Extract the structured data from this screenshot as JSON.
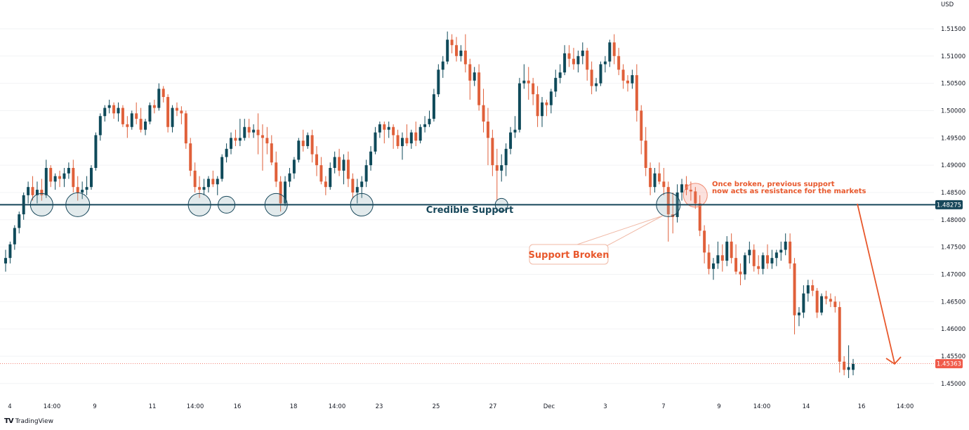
{
  "app": {
    "brand_logo": "TV",
    "brand_name": "TradingView"
  },
  "colors": {
    "up": "#0f4a5a",
    "down": "#e0603a",
    "support_line": "#17475a",
    "annotation": "#e8582c",
    "last_price": "#f05a4a"
  },
  "axis": {
    "currency": "USD"
  },
  "annotations": {
    "support_label": "Credible Support",
    "broken_label": "Support Broken",
    "resistance_note_line1": "Once broken, previous support",
    "resistance_note_line2": "now acts as resistance for the markets"
  },
  "chart_data": {
    "type": "candlestick",
    "title": "",
    "ylabel": "USD",
    "ylim": [
      1.4474,
      1.5195
    ],
    "yticks": [
      1.515,
      1.51,
      1.505,
      1.5,
      1.495,
      1.49,
      1.485,
      1.48,
      1.475,
      1.47,
      1.465,
      1.46,
      1.455,
      1.45
    ],
    "ytick_labels": [
      "1.51500",
      "1.51000",
      "1.50500",
      "1.50000",
      "1.49500",
      "1.49000",
      "1.48500",
      "1.48000",
      "1.47500",
      "1.47000",
      "1.46500",
      "1.46000",
      "1.45500",
      "1.45000"
    ],
    "xtick_labels": [
      "4",
      "14:00",
      "9",
      "11",
      "14:00",
      "16",
      "18",
      "14:00",
      "23",
      "25",
      "27",
      "Dec",
      "3",
      "7",
      "9",
      "14:00",
      "14",
      "16",
      "14:00"
    ],
    "support_level": 1.48275,
    "support_level_label": "1.48275",
    "last_price": 1.45363,
    "last_price_label": "1.45363",
    "candles": [
      [
        1.472,
        1.4745,
        1.4705,
        1.473
      ],
      [
        1.473,
        1.476,
        1.472,
        1.4755
      ],
      [
        1.4755,
        1.479,
        1.4745,
        1.4785
      ],
      [
        1.4785,
        1.4815,
        1.4775,
        1.481
      ],
      [
        1.481,
        1.485,
        1.48,
        1.4845
      ],
      [
        1.4845,
        1.487,
        1.483,
        1.486
      ],
      [
        1.486,
        1.488,
        1.4835,
        1.4845
      ],
      [
        1.4845,
        1.487,
        1.483,
        1.4855
      ],
      [
        1.4855,
        1.4875,
        1.4835,
        1.4845
      ],
      [
        1.4845,
        1.491,
        1.484,
        1.4895
      ],
      [
        1.4895,
        1.49,
        1.486,
        1.487
      ],
      [
        1.487,
        1.4885,
        1.4855,
        1.488
      ],
      [
        1.488,
        1.489,
        1.486,
        1.4875
      ],
      [
        1.4875,
        1.4895,
        1.486,
        1.4885
      ],
      [
        1.4885,
        1.4905,
        1.4875,
        1.4895
      ],
      [
        1.4895,
        1.491,
        1.485,
        1.486
      ],
      [
        1.486,
        1.488,
        1.4835,
        1.485
      ],
      [
        1.485,
        1.487,
        1.4838,
        1.4855
      ],
      [
        1.4855,
        1.488,
        1.4845,
        1.486
      ],
      [
        1.486,
        1.49,
        1.4855,
        1.4895
      ],
      [
        1.4895,
        1.496,
        1.489,
        1.4955
      ],
      [
        1.4955,
        1.4995,
        1.4945,
        1.499
      ],
      [
        1.499,
        1.501,
        1.498,
        1.5005
      ],
      [
        1.5005,
        1.502,
        1.4995,
        1.501
      ],
      [
        1.501,
        1.5015,
        1.4985,
        1.4995
      ],
      [
        1.4995,
        1.5015,
        1.498,
        1.5005
      ],
      [
        1.5005,
        1.501,
        1.497,
        1.4975
      ],
      [
        1.4975,
        1.499,
        1.495,
        1.497
      ],
      [
        1.497,
        1.5,
        1.4965,
        1.4995
      ],
      [
        1.4995,
        1.5015,
        1.4975,
        1.4985
      ],
      [
        1.4985,
        1.5005,
        1.496,
        1.4965
      ],
      [
        1.4965,
        1.4985,
        1.4955,
        1.498
      ],
      [
        1.498,
        1.5015,
        1.4975,
        1.501
      ],
      [
        1.501,
        1.502,
        1.4995,
        1.5005
      ],
      [
        1.5005,
        1.505,
        1.5,
        1.504
      ],
      [
        1.504,
        1.5045,
        1.5015,
        1.5025
      ],
      [
        1.5025,
        1.503,
        1.496,
        1.497
      ],
      [
        1.497,
        1.501,
        1.496,
        1.5005
      ],
      [
        1.5005,
        1.5015,
        1.499,
        1.5
      ],
      [
        1.5,
        1.5008,
        1.4975,
        1.4995
      ],
      [
        1.4995,
        1.5,
        1.493,
        1.494
      ],
      [
        1.494,
        1.495,
        1.488,
        1.489
      ],
      [
        1.489,
        1.4905,
        1.485,
        1.486
      ],
      [
        1.486,
        1.488,
        1.484,
        1.4855
      ],
      [
        1.4855,
        1.4875,
        1.4845,
        1.486
      ],
      [
        1.486,
        1.488,
        1.485,
        1.4875
      ],
      [
        1.4875,
        1.489,
        1.486,
        1.4865
      ],
      [
        1.4865,
        1.488,
        1.4845,
        1.4875
      ],
      [
        1.4875,
        1.492,
        1.487,
        1.4915
      ],
      [
        1.4915,
        1.494,
        1.4905,
        1.493
      ],
      [
        1.493,
        1.496,
        1.492,
        1.495
      ],
      [
        1.495,
        1.4965,
        1.4935,
        1.4945
      ],
      [
        1.4945,
        1.4985,
        1.4935,
        1.495
      ],
      [
        1.495,
        1.4985,
        1.4945,
        1.497
      ],
      [
        1.497,
        1.4985,
        1.495,
        1.496
      ],
      [
        1.496,
        1.4975,
        1.495,
        1.4965
      ],
      [
        1.4965,
        1.4995,
        1.492,
        1.4955
      ],
      [
        1.4955,
        1.4975,
        1.489,
        1.495
      ],
      [
        1.495,
        1.497,
        1.492,
        1.494
      ],
      [
        1.494,
        1.4955,
        1.49,
        1.4905
      ],
      [
        1.4905,
        1.4925,
        1.486,
        1.487
      ],
      [
        1.487,
        1.488,
        1.4815,
        1.483
      ],
      [
        1.483,
        1.488,
        1.4825,
        1.487
      ],
      [
        1.487,
        1.4895,
        1.486,
        1.4885
      ],
      [
        1.4885,
        1.4915,
        1.4875,
        1.491
      ],
      [
        1.491,
        1.495,
        1.4905,
        1.4945
      ],
      [
        1.4945,
        1.4965,
        1.4925,
        1.4935
      ],
      [
        1.4935,
        1.496,
        1.493,
        1.4955
      ],
      [
        1.4955,
        1.4965,
        1.4905,
        1.492
      ],
      [
        1.492,
        1.4935,
        1.488,
        1.49
      ],
      [
        1.49,
        1.4915,
        1.4865,
        1.487
      ],
      [
        1.487,
        1.488,
        1.4845,
        1.486
      ],
      [
        1.486,
        1.4905,
        1.4855,
        1.4895
      ],
      [
        1.4895,
        1.4925,
        1.4885,
        1.4915
      ],
      [
        1.4915,
        1.493,
        1.488,
        1.489
      ],
      [
        1.489,
        1.492,
        1.4865,
        1.491
      ],
      [
        1.491,
        1.4925,
        1.486,
        1.4875
      ],
      [
        1.4875,
        1.4885,
        1.484,
        1.485
      ],
      [
        1.485,
        1.4875,
        1.483,
        1.486
      ],
      [
        1.486,
        1.488,
        1.484,
        1.487
      ],
      [
        1.487,
        1.491,
        1.486,
        1.49
      ],
      [
        1.49,
        1.4935,
        1.489,
        1.4925
      ],
      [
        1.4925,
        1.497,
        1.492,
        1.496
      ],
      [
        1.496,
        1.498,
        1.495,
        1.4975
      ],
      [
        1.4975,
        1.498,
        1.494,
        1.4965
      ],
      [
        1.4965,
        1.498,
        1.495,
        1.497
      ],
      [
        1.497,
        1.4975,
        1.493,
        1.4955
      ],
      [
        1.4955,
        1.4965,
        1.493,
        1.4935
      ],
      [
        1.4935,
        1.496,
        1.491,
        1.495
      ],
      [
        1.495,
        1.4975,
        1.4935,
        1.494
      ],
      [
        1.494,
        1.4965,
        1.493,
        1.496
      ],
      [
        1.496,
        1.498,
        1.4935,
        1.4945
      ],
      [
        1.4945,
        1.4975,
        1.494,
        1.497
      ],
      [
        1.497,
        1.499,
        1.496,
        1.4975
      ],
      [
        1.4975,
        1.5,
        1.497,
        1.4985
      ],
      [
        1.4985,
        1.504,
        1.498,
        1.503
      ],
      [
        1.503,
        1.5085,
        1.5025,
        1.5075
      ],
      [
        1.5075,
        1.51,
        1.506,
        1.509
      ],
      [
        1.509,
        1.5145,
        1.5085,
        1.513
      ],
      [
        1.513,
        1.514,
        1.5105,
        1.512
      ],
      [
        1.512,
        1.5135,
        1.509,
        1.51
      ],
      [
        1.51,
        1.512,
        1.509,
        1.511
      ],
      [
        1.511,
        1.514,
        1.507,
        1.5085
      ],
      [
        1.5085,
        1.5095,
        1.502,
        1.5055
      ],
      [
        1.5055,
        1.508,
        1.5045,
        1.507
      ],
      [
        1.507,
        1.5085,
        1.5,
        1.501
      ],
      [
        1.501,
        1.504,
        1.496,
        1.498
      ],
      [
        1.498,
        1.5005,
        1.49,
        1.495
      ],
      [
        1.495,
        1.4965,
        1.488,
        1.49
      ],
      [
        1.49,
        1.493,
        1.4835,
        1.489
      ],
      [
        1.489,
        1.492,
        1.487,
        1.49
      ],
      [
        1.49,
        1.494,
        1.488,
        1.493
      ],
      [
        1.493,
        1.497,
        1.492,
        1.496
      ],
      [
        1.496,
        1.499,
        1.495,
        1.4965
      ],
      [
        1.4965,
        1.506,
        1.496,
        1.505
      ],
      [
        1.505,
        1.5085,
        1.504,
        1.5055
      ],
      [
        1.5055,
        1.508,
        1.502,
        1.505
      ],
      [
        1.505,
        1.506,
        1.501,
        1.503
      ],
      [
        1.503,
        1.5045,
        1.497,
        1.499
      ],
      [
        1.499,
        1.5025,
        1.497,
        1.5015
      ],
      [
        1.5015,
        1.502,
        1.499,
        1.501
      ],
      [
        1.501,
        1.504,
        1.4995,
        1.5035
      ],
      [
        1.5035,
        1.5075,
        1.5025,
        1.506
      ],
      [
        1.506,
        1.5085,
        1.505,
        1.507
      ],
      [
        1.507,
        1.512,
        1.5065,
        1.5105
      ],
      [
        1.5105,
        1.512,
        1.508,
        1.5095
      ],
      [
        1.5095,
        1.5115,
        1.5075,
        1.5085
      ],
      [
        1.5085,
        1.511,
        1.507,
        1.51
      ],
      [
        1.51,
        1.5125,
        1.5085,
        1.511
      ],
      [
        1.511,
        1.5115,
        1.5055,
        1.5075
      ],
      [
        1.5075,
        1.509,
        1.503,
        1.5045
      ],
      [
        1.5045,
        1.506,
        1.5035,
        1.505
      ],
      [
        1.505,
        1.509,
        1.5045,
        1.5085
      ],
      [
        1.5085,
        1.51,
        1.507,
        1.509
      ],
      [
        1.509,
        1.513,
        1.508,
        1.5125
      ],
      [
        1.5125,
        1.514,
        1.5085,
        1.51
      ],
      [
        1.51,
        1.5115,
        1.5065,
        1.5075
      ],
      [
        1.5075,
        1.5085,
        1.504,
        1.5055
      ],
      [
        1.5055,
        1.5065,
        1.5035,
        1.505
      ],
      [
        1.505,
        1.5075,
        1.504,
        1.5065
      ],
      [
        1.5065,
        1.5085,
        1.498,
        1.5
      ],
      [
        1.5,
        1.501,
        1.492,
        1.4945
      ],
      [
        1.4945,
        1.497,
        1.488,
        1.4895
      ],
      [
        1.4895,
        1.4905,
        1.4845,
        1.486
      ],
      [
        1.486,
        1.4895,
        1.485,
        1.4885
      ],
      [
        1.4885,
        1.4905,
        1.4865,
        1.487
      ],
      [
        1.487,
        1.4895,
        1.4845,
        1.486
      ],
      [
        1.486,
        1.487,
        1.476,
        1.481
      ],
      [
        1.481,
        1.485,
        1.4775,
        1.4805
      ],
      [
        1.4805,
        1.4865,
        1.4795,
        1.485
      ],
      [
        1.485,
        1.4875,
        1.4835,
        1.4865
      ],
      [
        1.4865,
        1.488,
        1.4845,
        1.4855
      ],
      [
        1.4855,
        1.487,
        1.4835,
        1.4852
      ],
      [
        1.4852,
        1.486,
        1.482,
        1.483
      ],
      [
        1.483,
        1.4845,
        1.477,
        1.478
      ],
      [
        1.478,
        1.479,
        1.472,
        1.474
      ],
      [
        1.474,
        1.4755,
        1.47,
        1.471
      ],
      [
        1.471,
        1.473,
        1.469,
        1.472
      ],
      [
        1.472,
        1.476,
        1.471,
        1.4735
      ],
      [
        1.4735,
        1.4755,
        1.4705,
        1.4725
      ],
      [
        1.4725,
        1.477,
        1.4715,
        1.476
      ],
      [
        1.476,
        1.4775,
        1.472,
        1.473
      ],
      [
        1.473,
        1.4755,
        1.47,
        1.4705
      ],
      [
        1.4705,
        1.472,
        1.468,
        1.47
      ],
      [
        1.47,
        1.474,
        1.469,
        1.4735
      ],
      [
        1.4735,
        1.476,
        1.472,
        1.4745
      ],
      [
        1.4745,
        1.4755,
        1.4705,
        1.4715
      ],
      [
        1.4715,
        1.4735,
        1.47,
        1.471
      ],
      [
        1.471,
        1.474,
        1.47,
        1.4735
      ],
      [
        1.4735,
        1.4755,
        1.471,
        1.472
      ],
      [
        1.472,
        1.4745,
        1.471,
        1.473
      ],
      [
        1.473,
        1.4745,
        1.4715,
        1.474
      ],
      [
        1.474,
        1.476,
        1.4725,
        1.4745
      ],
      [
        1.4745,
        1.4775,
        1.4735,
        1.476
      ],
      [
        1.476,
        1.4775,
        1.471,
        1.472
      ],
      [
        1.472,
        1.473,
        1.459,
        1.4625
      ],
      [
        1.4625,
        1.464,
        1.4605,
        1.463
      ],
      [
        1.463,
        1.468,
        1.462,
        1.4665
      ],
      [
        1.4665,
        1.469,
        1.465,
        1.468
      ],
      [
        1.468,
        1.469,
        1.466,
        1.467
      ],
      [
        1.467,
        1.4675,
        1.462,
        1.463
      ],
      [
        1.463,
        1.4665,
        1.4625,
        1.466
      ],
      [
        1.466,
        1.467,
        1.4645,
        1.4655
      ],
      [
        1.4655,
        1.4665,
        1.464,
        1.465
      ],
      [
        1.465,
        1.466,
        1.463,
        1.464
      ],
      [
        1.464,
        1.465,
        1.452,
        1.454
      ],
      [
        1.454,
        1.455,
        1.4515,
        1.4525
      ],
      [
        1.4525,
        1.457,
        1.451,
        1.453
      ],
      [
        1.4525,
        1.4545,
        1.4515,
        1.4536
      ]
    ]
  }
}
